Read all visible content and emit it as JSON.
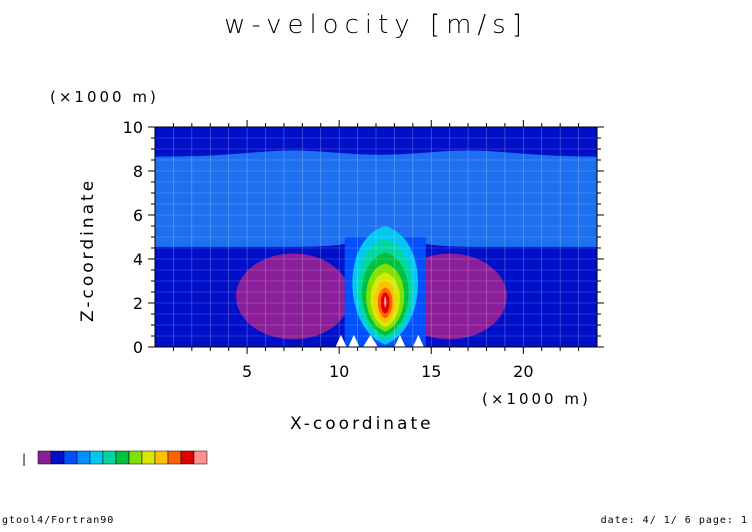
{
  "chart_data": {
    "type": "heatmap",
    "title": "w-velocity [m/s]",
    "xlabel": "X-coordinate",
    "ylabel": "Z-coordinate",
    "x_units": "(×1000 m)",
    "y_units": "(×1000 m)",
    "xlim": [
      0,
      24
    ],
    "ylim": [
      0,
      10
    ],
    "x_ticks": [
      5,
      10,
      15,
      20
    ],
    "y_ticks": [
      0,
      2,
      4,
      6,
      8,
      10
    ],
    "grid": true,
    "legend": "bottom-left colorbar",
    "colorbar_colors": [
      "#8b1f9a",
      "#0010c8",
      "#0050ff",
      "#0090ff",
      "#00c8f0",
      "#00d8a0",
      "#00c040",
      "#80e000",
      "#d8e800",
      "#ffc000",
      "#ff6000",
      "#e00000",
      "#ff9090"
    ],
    "colorbar_marker": "|",
    "regions": {
      "background_low": "#0010c8",
      "upper_band": "#1e70f0",
      "top_band": "#0010c8",
      "downdraft_left_center": [
        7.5,
        2.5
      ],
      "downdraft_right_center": [
        16.0,
        2.5
      ],
      "updraft_center": [
        12.5,
        2.5
      ]
    }
  },
  "footer": {
    "left": "gtool4/Fortran90",
    "right": "date: 4/ 1/ 6 page: 1"
  }
}
